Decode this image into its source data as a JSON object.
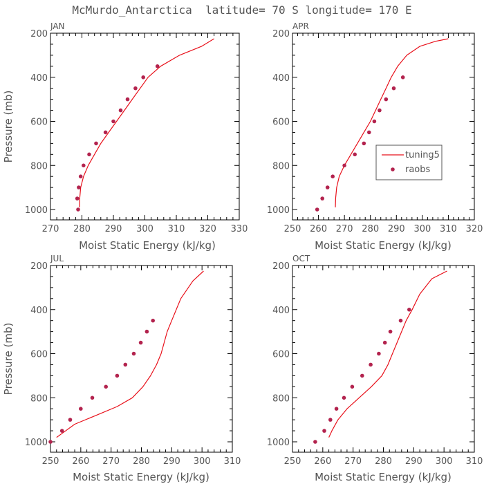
{
  "title": "McMurdo_Antarctica  latitude= 70 S longitude= 170 E",
  "colors": {
    "model": "#e8101a",
    "obs": "#b3234e",
    "axis": "#000000",
    "text": "#555555"
  },
  "legend": {
    "model_label": "tuning5",
    "obs_label": "raobs",
    "placement": "right-middle of APR panel"
  },
  "chart_data": [
    {
      "type": "line",
      "panel": "JAN",
      "title": "JAN",
      "xlabel": "Moist Static Energy (kJ/kg)",
      "ylabel": "Pressure (mb)",
      "xlim": [
        270,
        330
      ],
      "ylim": [
        1000,
        200
      ],
      "xticks": [
        270,
        280,
        290,
        300,
        310,
        320,
        330
      ],
      "yticks": [
        200,
        400,
        600,
        800,
        1000
      ],
      "series": [
        {
          "name": "tuning5",
          "kind": "line",
          "x": [
            279.2,
            279.3,
            279.6,
            280.5,
            282,
            284,
            286,
            288.5,
            291,
            293.5,
            296,
            298.5,
            301,
            305,
            311,
            318,
            322
          ],
          "y": [
            990,
            950,
            900,
            850,
            800,
            750,
            700,
            650,
            600,
            550,
            500,
            450,
            400,
            350,
            300,
            260,
            225
          ]
        },
        {
          "name": "raobs",
          "kind": "points",
          "x": [
            278.8,
            278.5,
            279,
            279.6,
            280.5,
            282.3,
            284.5,
            287.5,
            290,
            292.3,
            294.5,
            297,
            299.5,
            304
          ],
          "y": [
            1000,
            950,
            900,
            850,
            800,
            750,
            700,
            650,
            600,
            550,
            500,
            450,
            400,
            350
          ]
        }
      ]
    },
    {
      "type": "line",
      "panel": "APR",
      "title": "APR",
      "xlabel": "Moist Static Energy (kJ/kg)",
      "ylabel": "",
      "xlim": [
        250,
        320
      ],
      "ylim": [
        1000,
        200
      ],
      "xticks": [
        250,
        260,
        270,
        280,
        290,
        300,
        310,
        320
      ],
      "yticks": [
        200,
        400,
        600,
        800,
        1000
      ],
      "series": [
        {
          "name": "tuning5",
          "kind": "line",
          "x": [
            266.5,
            266.6,
            267,
            268,
            270,
            272.5,
            275,
            277.5,
            280,
            282,
            284,
            286,
            288,
            290.5,
            294,
            299,
            305,
            310
          ],
          "y": [
            990,
            950,
            900,
            850,
            800,
            750,
            700,
            650,
            600,
            550,
            500,
            450,
            400,
            350,
            300,
            260,
            237,
            225
          ]
        },
        {
          "name": "raobs",
          "kind": "points",
          "x": [
            259.5,
            261.5,
            263.5,
            265.5,
            270,
            274,
            277.5,
            279.5,
            281.5,
            283.5,
            286,
            289,
            292.5
          ],
          "y": [
            1000,
            950,
            900,
            850,
            800,
            750,
            700,
            650,
            600,
            550,
            500,
            450,
            400
          ]
        }
      ]
    },
    {
      "type": "line",
      "panel": "JUL",
      "title": "JUL",
      "xlabel": "Moist Static Energy (kJ/kg)",
      "ylabel": "Pressure (mb)",
      "xlim": [
        250,
        310
      ],
      "ylim": [
        1000,
        200
      ],
      "xticks": [
        250,
        260,
        270,
        280,
        290,
        300,
        310
      ],
      "yticks": [
        200,
        400,
        600,
        800,
        1000
      ],
      "series": [
        {
          "name": "tuning5",
          "kind": "line",
          "x": [
            252,
            254,
            258,
            265,
            272,
            277,
            280.5,
            283,
            285,
            286.5,
            287.5,
            288.5,
            290,
            293,
            297,
            300.5
          ],
          "y": [
            980,
            960,
            920,
            880,
            840,
            800,
            750,
            700,
            650,
            600,
            550,
            500,
            450,
            350,
            270,
            225
          ]
        },
        {
          "name": "raobs",
          "kind": "points",
          "x": [
            250,
            253.8,
            256.5,
            260,
            263.8,
            268.3,
            272,
            274.7,
            277.5,
            279.8,
            281.8,
            283.8
          ],
          "y": [
            1000,
            950,
            900,
            850,
            800,
            750,
            700,
            650,
            600,
            550,
            500,
            450
          ]
        }
      ]
    },
    {
      "type": "line",
      "panel": "OCT",
      "title": "OCT",
      "xlabel": "Moist Static Energy (kJ/kg)",
      "ylabel": "",
      "xlim": [
        250,
        310
      ],
      "ylim": [
        1000,
        200
      ],
      "xticks": [
        250,
        260,
        270,
        280,
        290,
        300,
        310
      ],
      "yticks": [
        200,
        400,
        600,
        800,
        1000
      ],
      "series": [
        {
          "name": "tuning5",
          "kind": "line",
          "x": [
            262,
            263,
            265,
            268,
            272,
            276,
            279.5,
            281.5,
            283,
            284.5,
            286,
            287.5,
            289.5,
            292,
            296,
            301
          ],
          "y": [
            980,
            950,
            900,
            850,
            800,
            750,
            700,
            650,
            600,
            550,
            500,
            450,
            400,
            330,
            260,
            225
          ]
        },
        {
          "name": "raobs",
          "kind": "points",
          "x": [
            257.5,
            260.5,
            262.5,
            264.5,
            267,
            269.7,
            273,
            275.8,
            278.5,
            280.5,
            282.3,
            285.7,
            288.5
          ],
          "y": [
            1000,
            950,
            900,
            850,
            800,
            750,
            700,
            650,
            600,
            550,
            500,
            450,
            400
          ]
        }
      ]
    }
  ]
}
